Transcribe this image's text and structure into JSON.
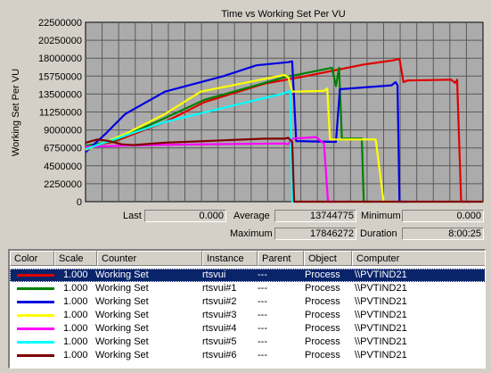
{
  "chart_data": {
    "type": "line",
    "title": "Time vs Working Set Per VU",
    "ylabel": "Working Set Per VU",
    "xlabel": "",
    "ylim": [
      0,
      22500000
    ],
    "xlim": [
      0,
      100
    ],
    "grid": true,
    "y_ticks": [
      "22500000",
      "20250000",
      "18000000",
      "15750000",
      "13500000",
      "11250000",
      "9000000",
      "6750000",
      "4500000",
      "2250000",
      "0"
    ],
    "x_gridlines": 24,
    "series": [
      {
        "color": "#e00000",
        "points": [
          [
            0,
            6900000
          ],
          [
            7,
            7500000
          ],
          [
            20,
            10000000
          ],
          [
            30,
            12500000
          ],
          [
            45,
            14800000
          ],
          [
            55,
            15700000
          ],
          [
            70,
            17200000
          ],
          [
            77,
            17700000
          ],
          [
            79,
            17900000
          ],
          [
            80,
            15000000
          ],
          [
            81,
            15200000
          ],
          [
            92,
            15300000
          ],
          [
            93,
            14900000
          ],
          [
            93.5,
            15300000
          ],
          [
            94.5,
            0
          ],
          [
            97,
            0
          ]
        ]
      },
      {
        "color": "#008000",
        "points": [
          [
            0,
            7000000
          ],
          [
            7,
            7600000
          ],
          [
            20,
            10500000
          ],
          [
            30,
            12800000
          ],
          [
            43,
            14600000
          ],
          [
            50,
            15600000
          ],
          [
            52,
            15800000
          ],
          [
            62,
            16800000
          ],
          [
            63,
            14500000
          ],
          [
            63.8,
            16800000
          ],
          [
            64.5,
            7900000
          ],
          [
            69.5,
            7900000
          ],
          [
            70,
            0
          ],
          [
            72,
            0
          ]
        ]
      },
      {
        "color": "#0000e0",
        "points": [
          [
            0,
            6200000
          ],
          [
            5,
            8500000
          ],
          [
            10,
            11000000
          ],
          [
            20,
            13800000
          ],
          [
            35,
            15800000
          ],
          [
            43,
            17100000
          ],
          [
            51,
            17500000
          ],
          [
            52,
            17600000
          ],
          [
            53,
            7600000
          ],
          [
            63,
            7500000
          ],
          [
            64,
            14100000
          ],
          [
            77,
            14600000
          ],
          [
            78,
            15000000
          ],
          [
            78.5,
            14600000
          ],
          [
            79,
            0
          ],
          [
            81,
            0
          ]
        ]
      },
      {
        "color": "#ffff00",
        "points": [
          [
            0,
            6500000
          ],
          [
            5,
            7500000
          ],
          [
            10,
            8500000
          ],
          [
            20,
            11000000
          ],
          [
            29,
            13800000
          ],
          [
            45,
            15400000
          ],
          [
            50,
            15900000
          ],
          [
            51,
            15600000
          ],
          [
            52,
            13800000
          ],
          [
            60,
            13900000
          ],
          [
            60.8,
            14200000
          ],
          [
            61.5,
            7800000
          ],
          [
            73,
            7800000
          ],
          [
            75,
            0
          ],
          [
            77,
            0
          ]
        ]
      },
      {
        "color": "#ff00ff",
        "points": [
          [
            0,
            6900000
          ],
          [
            15,
            7100000
          ],
          [
            30,
            7200000
          ],
          [
            50,
            7300000
          ],
          [
            51,
            7200000
          ],
          [
            52,
            7900000
          ],
          [
            58,
            8100000
          ],
          [
            60,
            7300000
          ],
          [
            61,
            0
          ],
          [
            63,
            0
          ]
        ]
      },
      {
        "color": "#00ffff",
        "points": [
          [
            0,
            6600000
          ],
          [
            6,
            7600000
          ],
          [
            10,
            8300000
          ],
          [
            20,
            10000000
          ],
          [
            30,
            11200000
          ],
          [
            40,
            12400000
          ],
          [
            50,
            13600000
          ],
          [
            51.5,
            13900000
          ],
          [
            52,
            0
          ],
          [
            54,
            0
          ]
        ]
      },
      {
        "color": "#800000",
        "points": [
          [
            0,
            7400000
          ],
          [
            3,
            7800000
          ],
          [
            6,
            7600000
          ],
          [
            9,
            7200000
          ],
          [
            12,
            7100000
          ],
          [
            20,
            7400000
          ],
          [
            30,
            7600000
          ],
          [
            45,
            7900000
          ],
          [
            50,
            7900000
          ],
          [
            51,
            8000000
          ],
          [
            52,
            7500000
          ],
          [
            52.5,
            0
          ],
          [
            100,
            0
          ]
        ]
      }
    ]
  },
  "stats": {
    "last_label": "Last",
    "last_value": "0.000",
    "average_label": "Average",
    "average_value": "13744775",
    "minimum_label": "Minimum",
    "minimum_value": "0.000",
    "maximum_label": "Maximum",
    "maximum_value": "17846272",
    "duration_label": "Duration",
    "duration_value": "8:00:25"
  },
  "legend": {
    "headers": {
      "color": "Color",
      "scale": "Scale",
      "counter": "Counter",
      "instance": "Instance",
      "parent": "Parent",
      "object": "Object",
      "computer": "Computer"
    },
    "rows": [
      {
        "color": "#e00000",
        "scale": "1.000",
        "counter": "Working Set",
        "instance": "rtsvui",
        "parent": "---",
        "object": "Process",
        "computer": "\\\\PVTIND21",
        "selected": true
      },
      {
        "color": "#008000",
        "scale": "1.000",
        "counter": "Working Set",
        "instance": "rtsvui#1",
        "parent": "---",
        "object": "Process",
        "computer": "\\\\PVTIND21",
        "selected": false
      },
      {
        "color": "#0000e0",
        "scale": "1.000",
        "counter": "Working Set",
        "instance": "rtsvui#2",
        "parent": "---",
        "object": "Process",
        "computer": "\\\\PVTIND21",
        "selected": false
      },
      {
        "color": "#ffff00",
        "scale": "1.000",
        "counter": "Working Set",
        "instance": "rtsvui#3",
        "parent": "---",
        "object": "Process",
        "computer": "\\\\PVTIND21",
        "selected": false
      },
      {
        "color": "#ff00ff",
        "scale": "1.000",
        "counter": "Working Set",
        "instance": "rtsvui#4",
        "parent": "---",
        "object": "Process",
        "computer": "\\\\PVTIND21",
        "selected": false
      },
      {
        "color": "#00ffff",
        "scale": "1.000",
        "counter": "Working Set",
        "instance": "rtsvui#5",
        "parent": "---",
        "object": "Process",
        "computer": "\\\\PVTIND21",
        "selected": false
      },
      {
        "color": "#800000",
        "scale": "1.000",
        "counter": "Working Set",
        "instance": "rtsvui#6",
        "parent": "---",
        "object": "Process",
        "computer": "\\\\PVTIND21",
        "selected": false
      }
    ]
  }
}
